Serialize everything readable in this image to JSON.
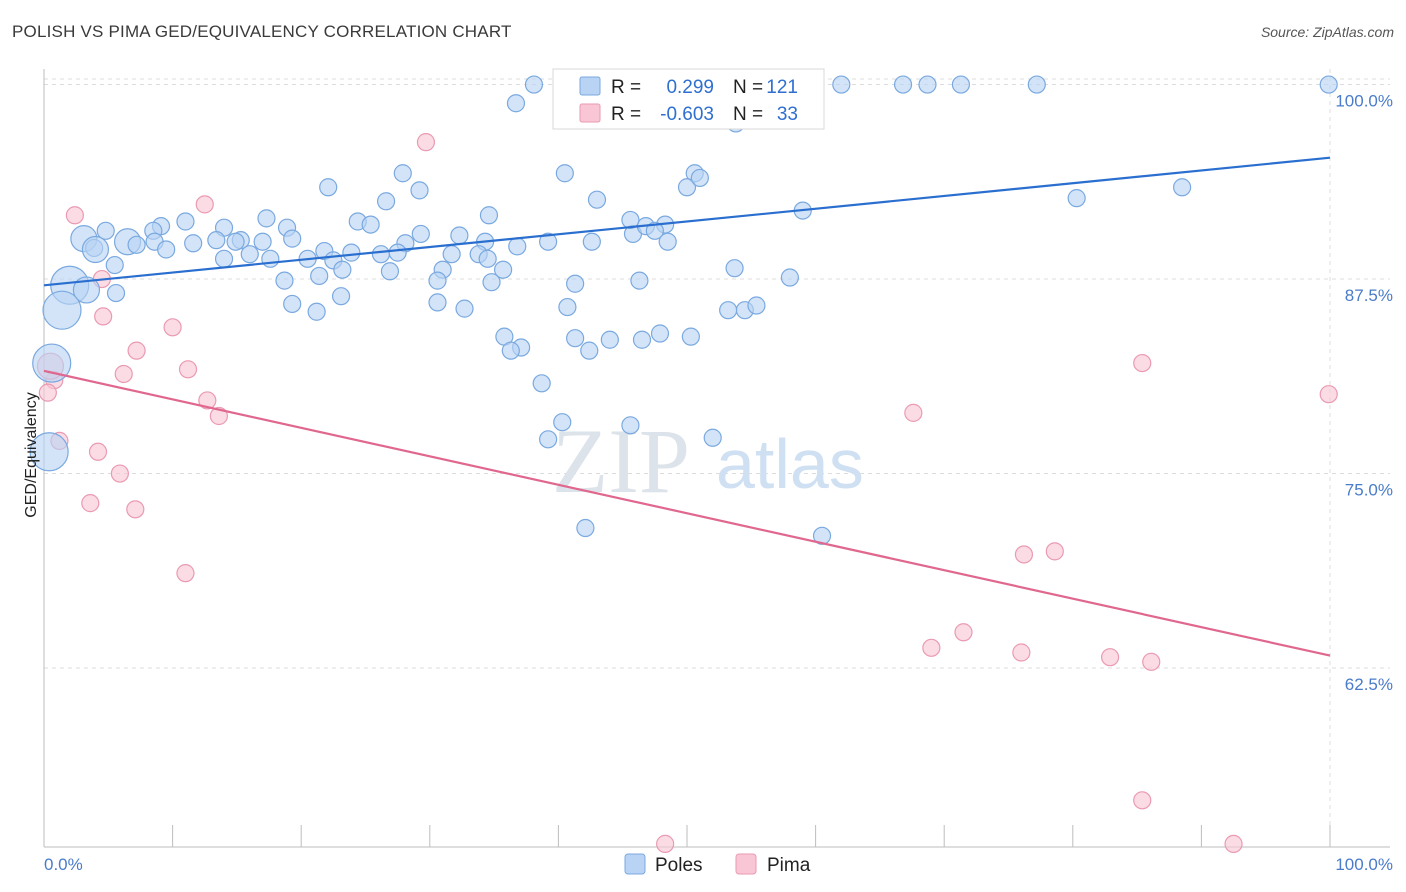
{
  "title": "POLISH VS PIMA GED/EQUIVALENCY CORRELATION CHART",
  "source": "Source: ZipAtlas.com",
  "watermark": {
    "zip": "ZIP",
    "atlas": "atlas"
  },
  "legend": {
    "rows": [
      {
        "r_label": "R =",
        "r_value": "0.299",
        "n_label": "N =",
        "n_value": "121"
      },
      {
        "r_label": "R =",
        "r_value": "-0.603",
        "n_label": "N =",
        "n_value": "33"
      }
    ]
  },
  "bottom_legend": [
    "Poles",
    "Pima"
  ],
  "colors": {
    "poles_fill": "#b8d3f3",
    "poles_stroke": "#7aa9e0",
    "poles_line": "#2a6fcf",
    "pima_fill": "#f8c6d4",
    "pima_stroke": "#ea9ab2",
    "pima_line": "#e0678e",
    "tick": "#4a7cc9",
    "grid": "#dcdcdc"
  },
  "chart_data": {
    "type": "scatter",
    "xlabel": "",
    "ylabel": "GED/Equivalency",
    "xlim": [
      0,
      100
    ],
    "ylim": [
      51,
      101
    ],
    "x_tick_labels": [
      {
        "v": 0,
        "label": "0.0%"
      },
      {
        "v": 100,
        "label": "100.0%"
      }
    ],
    "y_tick_labels": [
      {
        "v": 100,
        "label": "100.0%"
      },
      {
        "v": 87.5,
        "label": "87.5%"
      },
      {
        "v": 75,
        "label": "75.0%"
      },
      {
        "v": 62.5,
        "label": "62.5%"
      }
    ],
    "grid": true,
    "legend_position": "top-center",
    "series": [
      {
        "name": "Poles",
        "trend": [
          [
            0,
            87.1
          ],
          [
            100,
            95.3
          ]
        ],
        "points": [
          [
            38.1,
            100,
            1
          ],
          [
            47.7,
            100,
            1
          ],
          [
            49.0,
            100,
            1
          ],
          [
            49.9,
            100,
            1
          ],
          [
            55.1,
            100,
            1
          ],
          [
            56.1,
            100,
            1
          ],
          [
            58.6,
            100,
            1
          ],
          [
            62.0,
            100,
            1
          ],
          [
            66.8,
            100,
            1
          ],
          [
            68.7,
            100,
            1
          ],
          [
            71.3,
            100,
            1
          ],
          [
            77.2,
            100,
            1
          ],
          [
            99.9,
            100,
            1
          ],
          [
            36.7,
            98.8,
            1
          ],
          [
            51.0,
            98.2,
            1
          ],
          [
            54.1,
            98.2,
            1
          ],
          [
            53.8,
            97.5,
            1
          ],
          [
            51.3,
            98.5,
            1
          ],
          [
            27.9,
            94.3,
            1
          ],
          [
            40.5,
            94.3,
            1
          ],
          [
            50.6,
            94.3,
            1
          ],
          [
            22.1,
            93.4,
            1
          ],
          [
            29.2,
            93.2,
            1
          ],
          [
            26.6,
            92.5,
            1
          ],
          [
            43.0,
            92.6,
            1
          ],
          [
            50.0,
            93.4,
            1
          ],
          [
            80.3,
            92.7,
            1
          ],
          [
            88.5,
            93.4,
            1
          ],
          [
            34.6,
            91.6,
            1
          ],
          [
            24.4,
            91.2,
            1
          ],
          [
            25.4,
            91.0,
            1
          ],
          [
            17.3,
            91.4,
            1
          ],
          [
            11.0,
            91.2,
            1
          ],
          [
            9.1,
            90.9,
            1
          ],
          [
            8.5,
            90.6,
            1
          ],
          [
            4.8,
            90.6,
            1
          ],
          [
            14.0,
            90.8,
            1
          ],
          [
            18.9,
            90.8,
            1
          ],
          [
            29.3,
            90.4,
            1
          ],
          [
            32.3,
            90.3,
            1
          ],
          [
            45.8,
            90.4,
            1
          ],
          [
            46.8,
            90.9,
            1
          ],
          [
            45.6,
            91.3,
            1
          ],
          [
            3.1,
            90.1,
            2
          ],
          [
            6.5,
            89.9,
            2
          ],
          [
            8.6,
            89.9,
            1
          ],
          [
            13.4,
            90.0,
            1
          ],
          [
            15.3,
            90.0,
            1
          ],
          [
            14.9,
            89.9,
            1
          ],
          [
            17.0,
            89.9,
            1
          ],
          [
            19.3,
            90.1,
            1
          ],
          [
            11.6,
            89.8,
            1
          ],
          [
            28.1,
            89.8,
            1
          ],
          [
            34.3,
            89.9,
            1
          ],
          [
            39.2,
            89.9,
            1
          ],
          [
            42.6,
            89.9,
            1
          ],
          [
            9.5,
            89.4,
            1
          ],
          [
            7.2,
            89.7,
            1
          ],
          [
            3.9,
            89.5,
            1
          ],
          [
            4.0,
            89.4,
            2
          ],
          [
            36.8,
            89.6,
            1
          ],
          [
            48.5,
            89.9,
            1
          ],
          [
            16.0,
            89.1,
            1
          ],
          [
            17.6,
            88.8,
            1
          ],
          [
            21.8,
            89.3,
            1
          ],
          [
            23.9,
            89.2,
            1
          ],
          [
            26.2,
            89.1,
            1
          ],
          [
            27.5,
            89.2,
            1
          ],
          [
            31.7,
            89.1,
            1
          ],
          [
            33.8,
            89.1,
            1
          ],
          [
            34.5,
            88.8,
            1
          ],
          [
            20.5,
            88.8,
            1
          ],
          [
            22.5,
            88.7,
            1
          ],
          [
            14.0,
            88.8,
            1
          ],
          [
            5.5,
            88.4,
            1
          ],
          [
            23.2,
            88.1,
            1
          ],
          [
            26.9,
            88.0,
            1
          ],
          [
            31.0,
            88.1,
            1
          ],
          [
            35.7,
            88.1,
            1
          ],
          [
            53.7,
            88.2,
            1
          ],
          [
            21.4,
            87.7,
            1
          ],
          [
            18.7,
            87.4,
            1
          ],
          [
            30.6,
            87.4,
            1
          ],
          [
            34.8,
            87.3,
            1
          ],
          [
            41.3,
            87.2,
            1
          ],
          [
            46.3,
            87.4,
            1
          ],
          [
            58.0,
            87.6,
            1
          ],
          [
            2.0,
            87.1,
            3
          ],
          [
            3.3,
            86.8,
            2
          ],
          [
            5.6,
            86.6,
            1
          ],
          [
            23.1,
            86.4,
            1
          ],
          [
            30.6,
            86.0,
            1
          ],
          [
            19.3,
            85.9,
            1
          ],
          [
            32.7,
            85.6,
            1
          ],
          [
            40.7,
            85.7,
            1
          ],
          [
            54.5,
            85.5,
            1
          ],
          [
            55.4,
            85.8,
            1
          ],
          [
            53.2,
            85.5,
            1
          ],
          [
            21.2,
            85.4,
            1
          ],
          [
            1.4,
            85.5,
            3
          ],
          [
            35.8,
            83.8,
            1
          ],
          [
            41.3,
            83.7,
            1
          ],
          [
            44.0,
            83.6,
            1
          ],
          [
            47.9,
            84.0,
            1
          ],
          [
            50.3,
            83.8,
            1
          ],
          [
            46.5,
            83.6,
            1
          ],
          [
            37.1,
            83.1,
            1
          ],
          [
            36.3,
            82.9,
            1
          ],
          [
            42.4,
            82.9,
            1
          ],
          [
            0.6,
            82.1,
            3
          ],
          [
            38.7,
            80.8,
            1
          ],
          [
            40.3,
            78.3,
            1
          ],
          [
            45.6,
            78.1,
            1
          ],
          [
            39.2,
            77.2,
            1
          ],
          [
            52.0,
            77.3,
            1
          ],
          [
            0.4,
            76.4,
            3
          ],
          [
            42.1,
            71.5,
            1
          ],
          [
            60.5,
            71.0,
            1
          ],
          [
            59.0,
            91.9,
            1
          ],
          [
            51.0,
            94.0,
            1
          ],
          [
            48.3,
            91.0,
            1
          ],
          [
            47.5,
            90.6,
            1
          ]
        ]
      },
      {
        "name": "Pima",
        "trend": [
          [
            0,
            81.6
          ],
          [
            100,
            63.3
          ]
        ],
        "points": [
          [
            29.7,
            96.3,
            1
          ],
          [
            12.5,
            92.3,
            1
          ],
          [
            2.4,
            91.6,
            1
          ],
          [
            4.5,
            87.5,
            1
          ],
          [
            4.6,
            85.1,
            1
          ],
          [
            10.0,
            84.4,
            1
          ],
          [
            7.2,
            82.9,
            1
          ],
          [
            6.2,
            81.4,
            1
          ],
          [
            0.8,
            81.0,
            1
          ],
          [
            0.3,
            80.2,
            1
          ],
          [
            11.2,
            81.7,
            1
          ],
          [
            12.7,
            79.7,
            1
          ],
          [
            13.6,
            78.7,
            1
          ],
          [
            1.2,
            77.1,
            1
          ],
          [
            4.2,
            76.4,
            1
          ],
          [
            5.9,
            75.0,
            1
          ],
          [
            3.6,
            73.1,
            1
          ],
          [
            7.1,
            72.7,
            1
          ],
          [
            11.0,
            68.6,
            1
          ],
          [
            67.6,
            78.9,
            1
          ],
          [
            85.4,
            82.1,
            1
          ],
          [
            99.9,
            80.1,
            1
          ],
          [
            76.2,
            69.8,
            1
          ],
          [
            78.6,
            70.0,
            1
          ],
          [
            71.5,
            64.8,
            1
          ],
          [
            69.0,
            63.8,
            1
          ],
          [
            76.0,
            63.5,
            1
          ],
          [
            82.9,
            63.2,
            1
          ],
          [
            86.1,
            62.9,
            1
          ],
          [
            85.4,
            54.0,
            1
          ],
          [
            92.5,
            51.2,
            1
          ],
          [
            48.3,
            51.2,
            1
          ],
          [
            0.5,
            81.9,
            2
          ]
        ]
      }
    ]
  }
}
